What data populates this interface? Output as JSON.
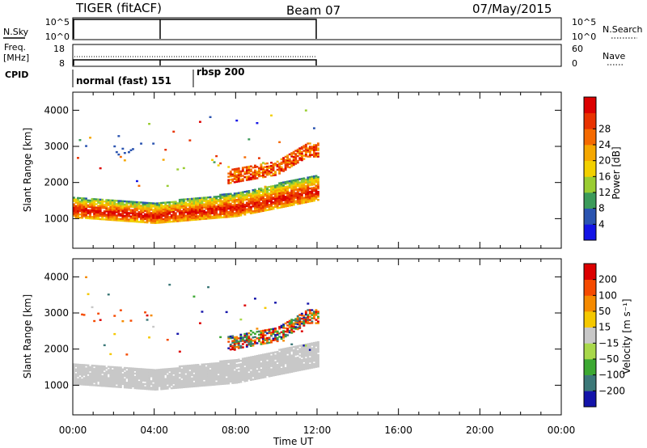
{
  "header": {
    "title": "TIGER (fitACF)",
    "beam": "Beam 07",
    "date": "07/May/2015"
  },
  "side_labels": {
    "nsky": "N.Sky",
    "freq": "Freq.",
    "mhz": "[MHz]",
    "cpid": "CPID",
    "nsearch": "N.Search",
    "nave": "Nave"
  },
  "mini_axes": {
    "nsky_left": [
      "10^5",
      "10^0"
    ],
    "nsky_right": [
      "10^5",
      "10^0"
    ],
    "freq_left": [
      "18",
      "8"
    ],
    "freq_right": [
      "60",
      "0"
    ]
  },
  "cpid_labels": [
    "normal (fast) 151",
    "rbsp 200"
  ],
  "colors": {
    "power": [
      "#1414e6",
      "#2b54b0",
      "#3c9b5a",
      "#9acd32",
      "#f2d000",
      "#f5a700",
      "#f56a00",
      "#e83200",
      "#dc0000"
    ],
    "velocity": [
      "#dc0000",
      "#f54a00",
      "#f58a00",
      "#f5c800",
      "#c8c8c8",
      "#a8d84a",
      "#3ca832",
      "#3c7878",
      "#1414aa"
    ]
  },
  "chart_data": [
    {
      "type": "heatmap",
      "name": "power",
      "ylabel": "Slant Range [km]",
      "xlabel": "Time UT",
      "yticks": [
        "1000",
        "2000",
        "3000",
        "4000"
      ],
      "xticks": [
        "00:00",
        "04:00",
        "08:00",
        "12:00",
        "16:00",
        "20:00",
        "00:00"
      ],
      "colorbar_label": "Power [dB]",
      "colorbar_ticks": [
        "4",
        "8",
        "12",
        "16",
        "20",
        "24",
        "28"
      ],
      "xlim_hours": [
        0,
        24
      ],
      "ylim_km": [
        180,
        4500
      ],
      "data_extent_hours": [
        0,
        12
      ],
      "main_echo_band": {
        "lower_km": [
          [
            0,
            1020
          ],
          [
            4,
            860
          ],
          [
            8,
            1050
          ],
          [
            12,
            1500
          ]
        ],
        "upper_km": [
          [
            0,
            1600
          ],
          [
            4,
            1420
          ],
          [
            8,
            1700
          ],
          [
            12,
            2200
          ]
        ]
      },
      "upper_patch_km": [
        [
          8,
          2200
        ],
        [
          10,
          2400
        ],
        [
          11.5,
          2900
        ]
      ]
    },
    {
      "type": "heatmap",
      "name": "velocity",
      "ylabel": "Slant Range [km]",
      "xlabel": "Time UT",
      "yticks": [
        "1000",
        "2000",
        "3000",
        "4000"
      ],
      "xticks": [
        "00:00",
        "04:00",
        "08:00",
        "12:00",
        "16:00",
        "20:00",
        "00:00"
      ],
      "colorbar_label": "Velocity [m s⁻¹]",
      "colorbar_ticks": [
        "200",
        "100",
        "50",
        "15",
        "−15",
        "−50",
        "−100",
        "−200"
      ],
      "xlim_hours": [
        0,
        24
      ],
      "ylim_km": [
        180,
        4500
      ],
      "data_extent_hours": [
        0,
        12
      ]
    }
  ]
}
